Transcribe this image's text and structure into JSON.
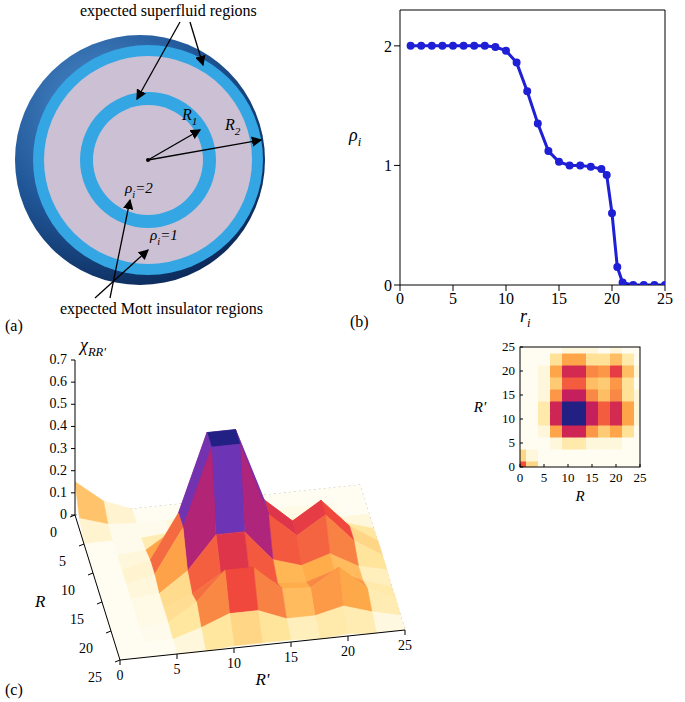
{
  "diagram": {
    "label": "(a)",
    "superfluid_label": "expected superfluid regions",
    "mott_label": "expected Mott insulator regions",
    "radii": [
      {
        "base": "R",
        "sub": "1"
      },
      {
        "base": "R",
        "sub": "2"
      }
    ],
    "densities": [
      {
        "base": "ρ",
        "sub": "i",
        "rest": "=2"
      },
      {
        "base": "ρ",
        "sub": "i",
        "rest": "=1"
      }
    ]
  },
  "chart_data": [
    {
      "panel": "(b)",
      "type": "line",
      "x": [
        1,
        2,
        3,
        4,
        5,
        6,
        7,
        8,
        9,
        10,
        11,
        12,
        13,
        14,
        15,
        16,
        17,
        18,
        19,
        19.5,
        20,
        20.5,
        21,
        22,
        23,
        24,
        25
      ],
      "values": [
        2,
        2,
        2,
        2,
        2,
        2,
        2,
        2,
        1.99,
        1.96,
        1.86,
        1.62,
        1.35,
        1.12,
        1.03,
        1,
        1,
        0.99,
        0.97,
        0.92,
        0.6,
        0.15,
        0.02,
        0,
        0,
        0,
        0
      ],
      "color": "#1f1fd6",
      "marker": "circle",
      "xlim": [
        0,
        25
      ],
      "xticks": [
        0,
        5,
        10,
        15,
        20,
        25
      ],
      "ylim": [
        0,
        2.3
      ],
      "yticks": [
        0,
        1,
        2
      ],
      "xlabel": {
        "base": "r",
        "sub": "i"
      },
      "ylabel": {
        "base": "ρ",
        "sub": "i"
      }
    },
    {
      "panel": "(c)",
      "type": "surface",
      "x": [
        0,
        2.5,
        5,
        7.5,
        10,
        12.5,
        15,
        17.5,
        20,
        22.5,
        25
      ],
      "y": [
        0,
        2.5,
        5,
        7.5,
        10,
        12.5,
        15,
        17.5,
        20,
        22.5,
        25
      ],
      "cells": [
        [
          0.15,
          0.05,
          0,
          0,
          0,
          0,
          0,
          0,
          0,
          0,
          0
        ],
        [
          0.05,
          0.01,
          0,
          0,
          0,
          0,
          0,
          0,
          0,
          0,
          0
        ],
        [
          0,
          0,
          0,
          0.01,
          0.03,
          0.03,
          0.01,
          0.01,
          0.01,
          0,
          0
        ],
        [
          0,
          0,
          0.01,
          0.09,
          0.23,
          0.23,
          0.1,
          0.06,
          0.09,
          0.04,
          0
        ],
        [
          0,
          0,
          0.03,
          0.23,
          0.58,
          0.58,
          0.25,
          0.14,
          0.22,
          0.09,
          0.01
        ],
        [
          0,
          0,
          0.03,
          0.23,
          0.58,
          0.58,
          0.25,
          0.14,
          0.22,
          0.09,
          0.01
        ],
        [
          0,
          0,
          0.01,
          0.1,
          0.25,
          0.25,
          0.11,
          0.07,
          0.11,
          0.04,
          0.01
        ],
        [
          0,
          0,
          0.01,
          0.06,
          0.14,
          0.14,
          0.07,
          0.06,
          0.1,
          0.04,
          0
        ],
        [
          0,
          0,
          0.01,
          0.09,
          0.22,
          0.22,
          0.11,
          0.1,
          0.18,
          0.07,
          0.01
        ],
        [
          0,
          0,
          0,
          0.04,
          0.09,
          0.09,
          0.04,
          0.04,
          0.07,
          0.03,
          0
        ],
        [
          0,
          0,
          0,
          0,
          0.01,
          0.01,
          0.01,
          0,
          0.01,
          0,
          0
        ]
      ],
      "xlim": [
        0,
        25
      ],
      "xticks": [
        0,
        5,
        10,
        15,
        20,
        25
      ],
      "ylim": [
        0,
        25
      ],
      "yticks": [
        0,
        5,
        10,
        15,
        20,
        25
      ],
      "zlim": [
        0,
        0.7
      ],
      "zticks": [
        0,
        0.1,
        0.2,
        0.3,
        0.4,
        0.5,
        0.6,
        0.7
      ],
      "xlabel": {
        "base": "R"
      },
      "ylabel": {
        "base": "R'"
      },
      "zlabel": {
        "base": "χ",
        "sub": "RR'"
      }
    },
    {
      "type": "heatmap",
      "x": [
        0,
        2.5,
        5,
        7.5,
        10,
        12.5,
        15,
        17.5,
        20,
        22.5,
        25
      ],
      "y": [
        0,
        2.5,
        5,
        7.5,
        10,
        12.5,
        15,
        17.5,
        20,
        22.5,
        25
      ],
      "cells": [
        [
          0.15,
          0.05,
          0,
          0,
          0,
          0,
          0,
          0,
          0,
          0,
          0
        ],
        [
          0.05,
          0.01,
          0,
          0,
          0,
          0,
          0,
          0,
          0,
          0,
          0
        ],
        [
          0,
          0,
          0,
          0.01,
          0.03,
          0.03,
          0.01,
          0.01,
          0.01,
          0,
          0
        ],
        [
          0,
          0,
          0.01,
          0.09,
          0.23,
          0.23,
          0.1,
          0.06,
          0.09,
          0.04,
          0
        ],
        [
          0,
          0,
          0.03,
          0.23,
          0.58,
          0.58,
          0.25,
          0.14,
          0.22,
          0.09,
          0.01
        ],
        [
          0,
          0,
          0.03,
          0.23,
          0.58,
          0.58,
          0.25,
          0.14,
          0.22,
          0.09,
          0.01
        ],
        [
          0,
          0,
          0.01,
          0.1,
          0.25,
          0.25,
          0.11,
          0.07,
          0.11,
          0.04,
          0.01
        ],
        [
          0,
          0,
          0.01,
          0.06,
          0.14,
          0.14,
          0.07,
          0.06,
          0.1,
          0.04,
          0
        ],
        [
          0,
          0,
          0.01,
          0.09,
          0.22,
          0.22,
          0.11,
          0.1,
          0.18,
          0.07,
          0.01
        ],
        [
          0,
          0,
          0,
          0.04,
          0.09,
          0.09,
          0.04,
          0.04,
          0.07,
          0.03,
          0
        ],
        [
          0,
          0,
          0,
          0,
          0.01,
          0.01,
          0.01,
          0,
          0.01,
          0,
          0
        ]
      ],
      "xlim": [
        0,
        25
      ],
      "xticks": [
        0,
        5,
        10,
        15,
        20,
        25
      ],
      "ylim": [
        0,
        25
      ],
      "yticks": [
        0,
        5,
        10,
        15,
        20,
        25
      ],
      "xlabel": {
        "base": "R"
      },
      "ylabel": {
        "base": "R'"
      }
    }
  ]
}
